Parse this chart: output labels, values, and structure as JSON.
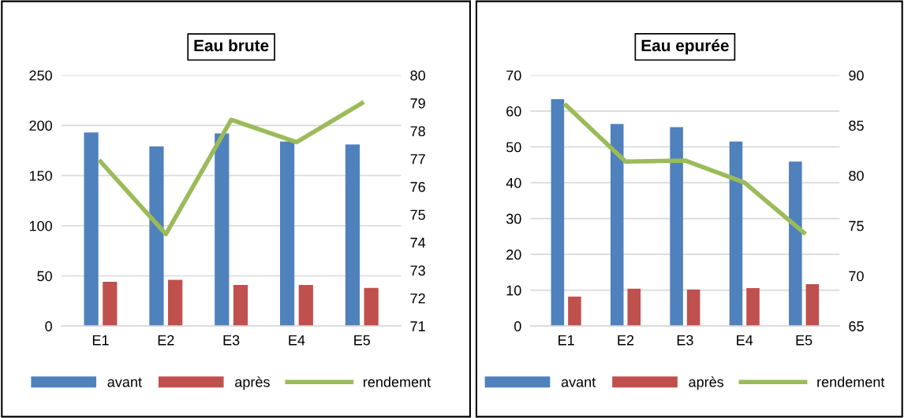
{
  "chart_data": [
    {
      "type": "bar",
      "title": "Eau brute",
      "categories": [
        "E1",
        "E2",
        "E3",
        "E4",
        "E5"
      ],
      "series": [
        {
          "name": "avant",
          "color": "#4f81bd",
          "values": [
            193,
            179,
            192,
            184,
            181
          ]
        },
        {
          "name": "après",
          "color": "#c0504d",
          "values": [
            44,
            46,
            41,
            41,
            38
          ]
        },
        {
          "name": "rendement",
          "color": "#9bbb59",
          "type": "line",
          "axis": "y2",
          "values": [
            76.9,
            74.3,
            78.4,
            77.6,
            79.0
          ]
        }
      ],
      "ylim": [
        0,
        250
      ],
      "yticks": [
        0,
        50,
        100,
        150,
        200,
        250
      ],
      "y2lim": [
        71,
        80
      ],
      "y2ticks": [
        71,
        72,
        73,
        74,
        75,
        76,
        77,
        78,
        79,
        80
      ],
      "grid": "y",
      "legend": "bottom"
    },
    {
      "type": "bar",
      "title": "Eau epurée",
      "categories": [
        "E1",
        "E2",
        "E3",
        "E4",
        "E5"
      ],
      "series": [
        {
          "name": "avant",
          "color": "#4f81bd",
          "values": [
            63.3,
            56.4,
            55.5,
            51.5,
            45.9
          ]
        },
        {
          "name": "après",
          "color": "#c0504d",
          "values": [
            8.2,
            10.4,
            10.2,
            10.6,
            11.7
          ]
        },
        {
          "name": "rendement",
          "color": "#9bbb59",
          "type": "line",
          "axis": "y2",
          "values": [
            87.0,
            81.4,
            81.5,
            79.3,
            74.3
          ]
        }
      ],
      "ylim": [
        0,
        70
      ],
      "yticks": [
        0,
        10,
        20,
        30,
        40,
        50,
        60,
        70
      ],
      "y2lim": [
        65,
        90
      ],
      "y2ticks": [
        65,
        70,
        75,
        80,
        85,
        90
      ],
      "grid": "y",
      "legend": "bottom"
    }
  ]
}
